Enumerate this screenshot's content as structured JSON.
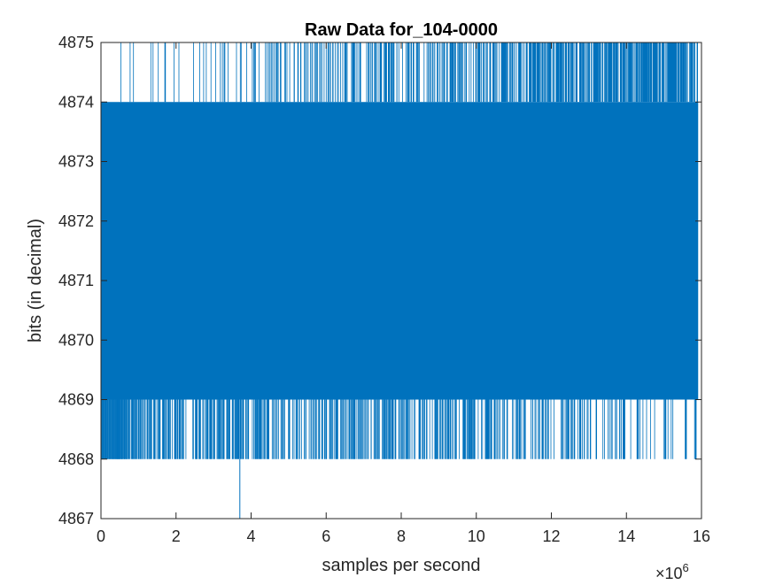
{
  "chart_data": {
    "type": "line",
    "title": "Raw Data for_104-0000",
    "xlabel": "samples per second",
    "ylabel": "bits (in decimal)",
    "x_exponent_label": "×10",
    "x_exponent_power": "6",
    "xlim": [
      0,
      16000000
    ],
    "ylim": [
      4867,
      4875
    ],
    "x_tick_values": [
      0,
      2000000,
      4000000,
      6000000,
      8000000,
      10000000,
      12000000,
      14000000,
      16000000
    ],
    "x_tick_labels": [
      "0",
      "2",
      "4",
      "6",
      "8",
      "10",
      "12",
      "14",
      "16"
    ],
    "y_tick_values": [
      4867,
      4868,
      4869,
      4870,
      4871,
      4872,
      4873,
      4874,
      4875
    ],
    "y_tick_labels": [
      "4867",
      "4868",
      "4869",
      "4870",
      "4871",
      "4872",
      "4873",
      "4874",
      "4875"
    ],
    "grid": false,
    "series_color": "#0072BD",
    "series": [
      {
        "x_range": [
          0,
          15900000
        ],
        "dense_band": [
          4869,
          4874
        ],
        "sample_min": 4867,
        "sample_max": 4875,
        "minimum_spike_x": 3700000,
        "minimum_spike_value": 4867
      }
    ]
  }
}
